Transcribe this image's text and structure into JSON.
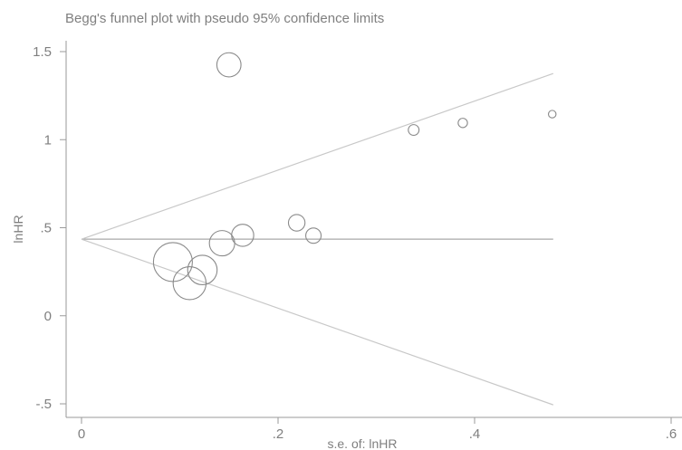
{
  "chart_data": {
    "type": "scatter",
    "title": "Begg's funnel plot with pseudo 95% confidence limits",
    "xlabel": "s.e. of: lnHR",
    "ylabel": "lnHR",
    "xlim": [
      0,
      0.6
    ],
    "ylim": [
      -0.5,
      1.5
    ],
    "x_ticks": [
      0,
      0.2,
      0.4,
      0.6
    ],
    "x_tick_labels": [
      "0",
      ".2",
      ".4",
      ".6"
    ],
    "y_ticks": [
      -0.5,
      0,
      0.5,
      1,
      1.5
    ],
    "y_tick_labels": [
      "-.5",
      "0",
      ".5",
      "1",
      "1.5"
    ],
    "pooled_estimate": 0.435,
    "pseudo_ci_max_se": 0.48,
    "grid": false,
    "legend": "none",
    "marker": "hollow circle, size proportional to weight (1/se)",
    "points": [
      {
        "x": 0.15,
        "y": 1.425
      },
      {
        "x": 0.338,
        "y": 1.055
      },
      {
        "x": 0.388,
        "y": 1.095
      },
      {
        "x": 0.479,
        "y": 1.145
      },
      {
        "x": 0.219,
        "y": 0.528
      },
      {
        "x": 0.236,
        "y": 0.455
      },
      {
        "x": 0.164,
        "y": 0.457
      },
      {
        "x": 0.143,
        "y": 0.412
      },
      {
        "x": 0.093,
        "y": 0.305
      },
      {
        "x": 0.123,
        "y": 0.26
      },
      {
        "x": 0.11,
        "y": 0.185
      }
    ]
  }
}
